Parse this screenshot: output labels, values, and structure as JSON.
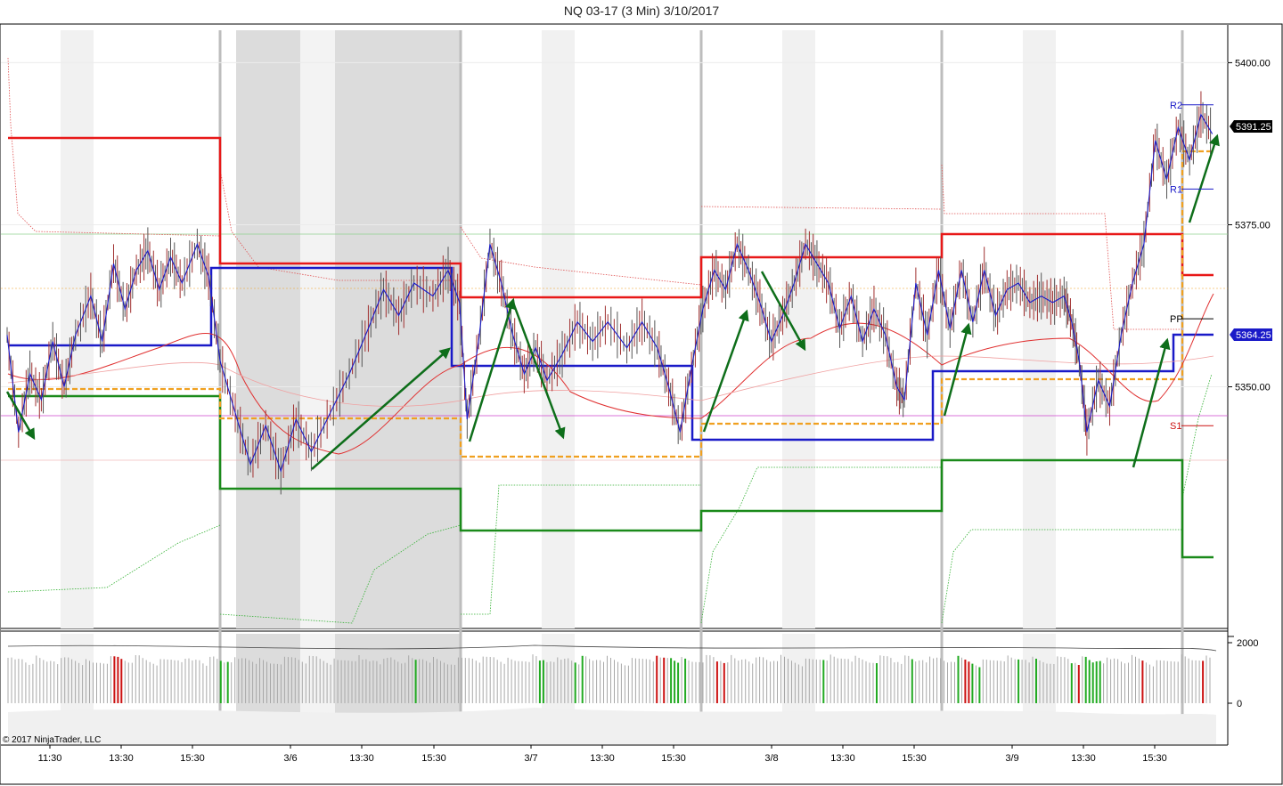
{
  "title": "NQ 03-17 (3 Min)  3/10/2017",
  "copyright": "© 2017 NinjaTrader, LLC",
  "colors": {
    "price": "#1a1ac8",
    "resistance": "#e81818",
    "support": "#1a8a1a",
    "pivot": "#1a1ac8",
    "midline": "#f0a020",
    "arrow": "#0e6e1a",
    "session_shade": "#d9d9d9",
    "volume_up": "#22aa22",
    "volume_down": "#cc1111",
    "volume": "#999999"
  },
  "chart_data": {
    "type": "candlestick",
    "instrument": "NQ 03-17",
    "interval": "3 Min",
    "date": "3/10/2017",
    "ylim": [
      5313,
      5405
    ],
    "yticks": [
      "5400.00",
      "5375.00",
      "5350.00"
    ],
    "ytick_values": [
      5400,
      5375,
      5350
    ],
    "xticks": [
      "11:30",
      "13:30",
      "15:30",
      "3/6",
      "13:30",
      "15:30",
      "3/7",
      "13:30",
      "15:30",
      "3/8",
      "13:30",
      "15:30",
      "3/9",
      "13:30",
      "15:30"
    ],
    "last_price_label": "5391.25",
    "last_price": 5391.25,
    "pivot_price_label": "5364.25",
    "pivot_price": 5364.25,
    "pivot_levels": [
      {
        "label": "R2",
        "value": 5393.5
      },
      {
        "label": "R1",
        "value": 5380.5
      },
      {
        "label": "PP",
        "value": 5360.5
      },
      {
        "label": "S1",
        "value": 5344.0
      }
    ],
    "volume_ticks": [
      "2000",
      "0"
    ],
    "volume_tick_values": [
      2000,
      0
    ],
    "price_path": [
      [
        0,
        5358
      ],
      [
        0.3,
        5343
      ],
      [
        0.6,
        5352
      ],
      [
        0.9,
        5348
      ],
      [
        1.2,
        5357
      ],
      [
        1.5,
        5350
      ],
      [
        1.8,
        5358
      ],
      [
        2.2,
        5364
      ],
      [
        2.5,
        5357
      ],
      [
        2.8,
        5369
      ],
      [
        3.1,
        5362
      ],
      [
        3.4,
        5368
      ],
      [
        3.7,
        5371
      ],
      [
        4.0,
        5365
      ],
      [
        4.3,
        5370
      ],
      [
        4.6,
        5366
      ],
      [
        5.0,
        5372
      ],
      [
        5.3,
        5367
      ],
      [
        5.6,
        5354
      ],
      [
        6.0,
        5346
      ],
      [
        6.4,
        5338
      ],
      [
        6.8,
        5344
      ],
      [
        7.2,
        5337
      ],
      [
        7.6,
        5345
      ],
      [
        8.0,
        5340
      ],
      [
        8.5,
        5346
      ],
      [
        9.0,
        5352
      ],
      [
        9.5,
        5359
      ],
      [
        9.9,
        5365
      ],
      [
        10.3,
        5361
      ],
      [
        10.7,
        5366
      ],
      [
        11.2,
        5364
      ],
      [
        11.6,
        5368
      ],
      [
        11.9,
        5363
      ],
      [
        12.1,
        5345
      ],
      [
        12.4,
        5357
      ],
      [
        12.7,
        5372
      ],
      [
        13.0,
        5366
      ],
      [
        13.3,
        5358
      ],
      [
        13.6,
        5352
      ],
      [
        13.9,
        5356
      ],
      [
        14.2,
        5351
      ],
      [
        14.6,
        5355
      ],
      [
        15.0,
        5360
      ],
      [
        15.4,
        5357
      ],
      [
        15.8,
        5360
      ],
      [
        16.3,
        5356
      ],
      [
        16.7,
        5360
      ],
      [
        17.1,
        5356
      ],
      [
        17.4,
        5350
      ],
      [
        17.7,
        5343
      ],
      [
        18.0,
        5353
      ],
      [
        18.3,
        5362
      ],
      [
        18.6,
        5368
      ],
      [
        18.9,
        5365
      ],
      [
        19.2,
        5372
      ],
      [
        19.5,
        5368
      ],
      [
        19.8,
        5363
      ],
      [
        20.1,
        5357
      ],
      [
        20.4,
        5361
      ],
      [
        20.7,
        5366
      ],
      [
        21.0,
        5372
      ],
      [
        21.3,
        5369
      ],
      [
        21.6,
        5366
      ],
      [
        21.9,
        5359
      ],
      [
        22.2,
        5364
      ],
      [
        22.5,
        5357
      ],
      [
        22.8,
        5362
      ],
      [
        23.1,
        5358
      ],
      [
        23.4,
        5350
      ],
      [
        23.6,
        5348
      ],
      [
        23.9,
        5366
      ],
      [
        24.2,
        5358
      ],
      [
        24.5,
        5368
      ],
      [
        24.8,
        5359
      ],
      [
        25.1,
        5368
      ],
      [
        25.4,
        5360
      ],
      [
        25.7,
        5368
      ],
      [
        26.0,
        5361
      ],
      [
        26.3,
        5365
      ],
      [
        26.6,
        5366
      ],
      [
        26.9,
        5363
      ],
      [
        27.2,
        5364
      ],
      [
        27.5,
        5363
      ],
      [
        27.8,
        5364
      ],
      [
        28.0,
        5360
      ],
      [
        28.2,
        5354
      ],
      [
        28.4,
        5343
      ],
      [
        28.7,
        5351
      ],
      [
        29.0,
        5347
      ],
      [
        29.3,
        5358
      ],
      [
        29.6,
        5366
      ],
      [
        29.9,
        5372
      ],
      [
        30.2,
        5388
      ],
      [
        30.5,
        5382
      ],
      [
        30.8,
        5390
      ],
      [
        31.1,
        5385
      ],
      [
        31.4,
        5392
      ],
      [
        31.7,
        5389
      ]
    ],
    "volume_values": [
      1500,
      1550,
      1520,
      1580,
      1600,
      1530,
      1490,
      1560,
      1610,
      1570,
      1540,
      1520,
      1580,
      1600,
      1550,
      1530,
      1590,
      1620,
      1600,
      1580,
      1550,
      1520,
      1490,
      1470,
      1450,
      1480,
      1510,
      1530,
      1560,
      1590,
      1620,
      1640,
      1610,
      1580,
      1560,
      1590,
      1620,
      1650,
      1600,
      1570,
      1540,
      1520,
      1500,
      1490,
      1520,
      1550,
      1580,
      1600,
      1630,
      1610
    ]
  }
}
